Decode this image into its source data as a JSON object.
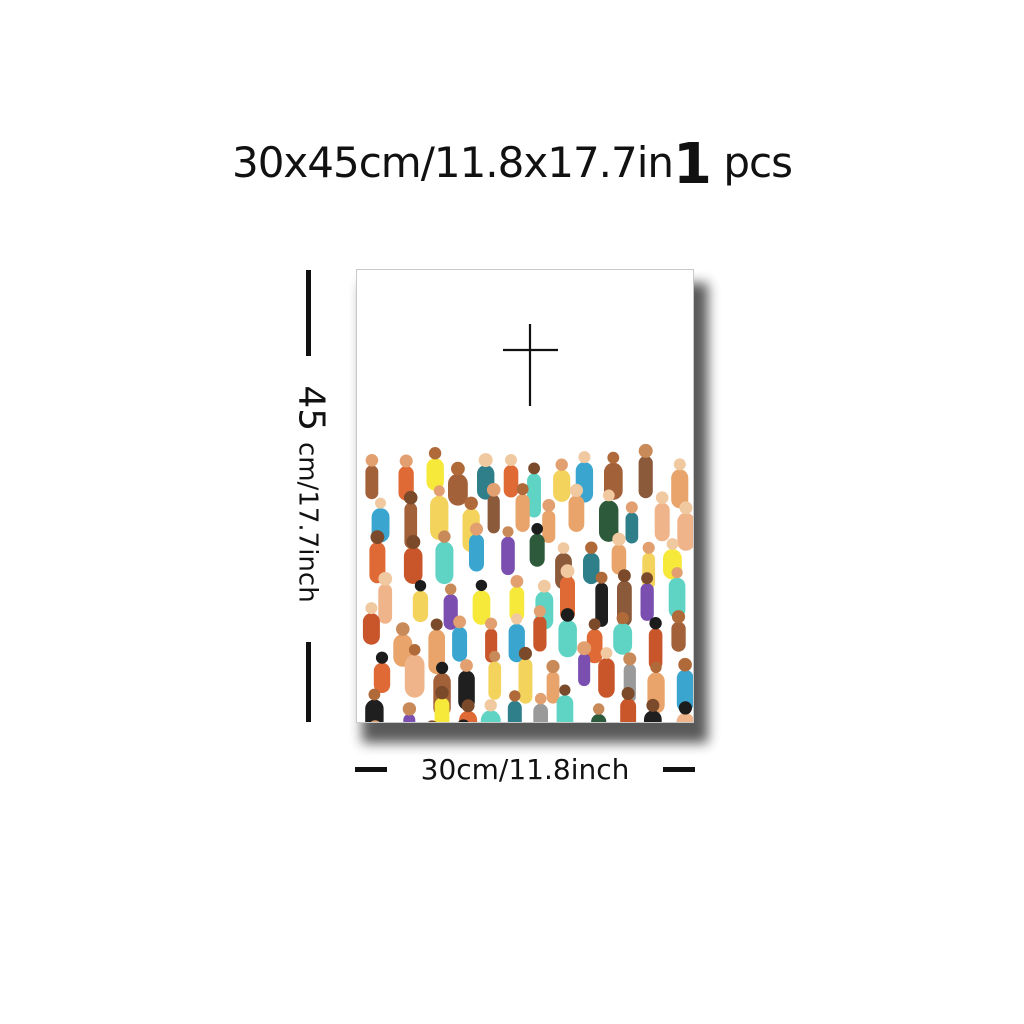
{
  "header": {
    "size_text": "30x45cm/11.8x17.7in",
    "quantity": "1",
    "quantity_unit": "pcs"
  },
  "dimensions": {
    "height_value": "45",
    "height_unit_text": "cm/17.7inch",
    "width_text": "30cm/11.8inch"
  },
  "artwork": {
    "subject": "cross above a colorful crowd of people",
    "palette": [
      "#e8a46a",
      "#c9552a",
      "#2f7f8a",
      "#f3d35b",
      "#7a4fb0",
      "#1f1f1f",
      "#a3613a",
      "#5fd3c4",
      "#f6e93a",
      "#2d5a3a",
      "#9a9a9a",
      "#e06a35",
      "#8a5a3a",
      "#f0b48a",
      "#3aa6cf"
    ]
  }
}
